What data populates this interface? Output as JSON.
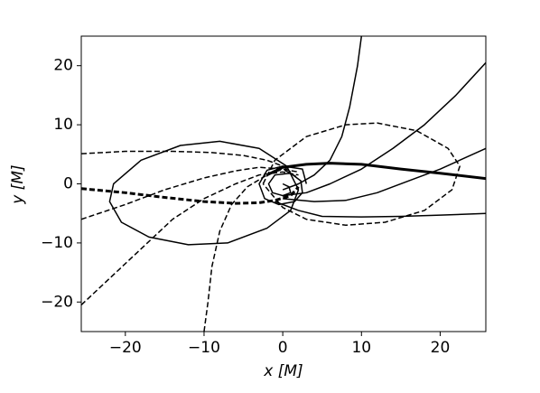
{
  "chart_data": {
    "type": "line",
    "xlabel": "x [M]",
    "ylabel": "y [M]",
    "xlim": [
      -25.6,
      25.8
    ],
    "ylim": [
      -25,
      25
    ],
    "xticks": [
      {
        "value": -20,
        "label": "−20"
      },
      {
        "value": -10,
        "label": "−10"
      },
      0,
      10,
      20
    ],
    "yticks": [
      {
        "value": -20,
        "label": "−20"
      },
      {
        "value": -10,
        "label": "−10"
      },
      0,
      10,
      20
    ],
    "grid": false,
    "series": [
      {
        "color": "#000000",
        "dash": false,
        "linewidth": 1.5,
        "x": [
          2,
          0.5,
          -3,
          -8,
          -13,
          -18,
          -21.5,
          -22,
          -20.5,
          -17,
          -12,
          -7,
          -2,
          1,
          2
        ],
        "values": [
          -1,
          3,
          6,
          7.2,
          6.5,
          4,
          0,
          -3,
          -6.5,
          -9,
          -10.3,
          -10,
          -7.5,
          -4.5,
          -1
        ]
      },
      {
        "color": "#000000",
        "dash": true,
        "linewidth": 1.5,
        "x": [
          -2.5,
          -1,
          3,
          8,
          12,
          17,
          21,
          22.5,
          21.5,
          18,
          13,
          8,
          3,
          0,
          -2.5
        ],
        "values": [
          0,
          4,
          8,
          10,
          10.3,
          9,
          6,
          3,
          -1,
          -4.5,
          -6.5,
          -7,
          -6,
          -4,
          0
        ]
      },
      {
        "color": "#000000",
        "dash": false,
        "linewidth": 1.5,
        "x": [
          0,
          2,
          4,
          6,
          7.5,
          8.5,
          9.5,
          10
        ],
        "values": [
          -1,
          0,
          1.5,
          4,
          8,
          13,
          20,
          25
        ]
      },
      {
        "color": "#000000",
        "dash": false,
        "linewidth": 1.5,
        "x": [
          0,
          3,
          6,
          10,
          14,
          18,
          22,
          25.8
        ],
        "values": [
          -2,
          -1.5,
          0,
          2.5,
          6,
          10,
          15,
          20.5
        ]
      },
      {
        "color": "#000000",
        "dash": false,
        "linewidth": 1.5,
        "x": [
          0,
          4,
          8,
          12,
          16,
          20,
          25.8
        ],
        "values": [
          -2.5,
          -3,
          -2.8,
          -1.5,
          0.5,
          2.5,
          6
        ]
      },
      {
        "color": "#000000",
        "dash": false,
        "linewidth": 3,
        "x": [
          -2,
          0,
          3,
          6,
          10,
          15,
          20,
          25.8
        ],
        "values": [
          1.5,
          2.8,
          3.3,
          3.5,
          3.3,
          2.5,
          1.8,
          0.9
        ]
      },
      {
        "color": "#000000",
        "dash": false,
        "linewidth": 1.5,
        "x": [
          -1,
          2,
          5,
          10,
          15,
          20,
          25.8
        ],
        "values": [
          -3,
          -4.5,
          -5.5,
          -5.6,
          -5.5,
          -5.3,
          -5
        ]
      },
      {
        "color": "#000000",
        "dash": true,
        "linewidth": 1.5,
        "x": [
          -25.6,
          -20,
          -14,
          -9,
          -5,
          -2,
          0,
          1
        ],
        "values": [
          5.1,
          5.5,
          5.5,
          5.3,
          4.8,
          4,
          3,
          2
        ]
      },
      {
        "color": "#000000",
        "dash": true,
        "linewidth": 1.5,
        "x": [
          -25.6,
          -20,
          -15,
          -10,
          -6,
          -3,
          0,
          2
        ],
        "values": [
          -6,
          -3.5,
          -1,
          1,
          2.2,
          2.8,
          2.5,
          1
        ]
      },
      {
        "color": "#000000",
        "dash": true,
        "linewidth": 1.5,
        "x": [
          -25.6,
          -22,
          -18,
          -14,
          -10,
          -6,
          -3,
          0,
          2
        ],
        "values": [
          -20.5,
          -16,
          -11,
          -6,
          -2.5,
          0,
          1.5,
          2,
          1.5
        ]
      },
      {
        "color": "#000000",
        "dash": true,
        "linewidth": 1.5,
        "x": [
          -10,
          -9.5,
          -9,
          -8,
          -6.5,
          -4.5,
          -2,
          0,
          2
        ],
        "values": [
          -25,
          -20,
          -14,
          -8,
          -3.5,
          -0.5,
          1.5,
          2.5,
          2
        ]
      },
      {
        "color": "#000000",
        "dash": true,
        "linewidth": 3,
        "x": [
          -25.6,
          -20,
          -15,
          -10,
          -6,
          -3,
          -1,
          1,
          2
        ],
        "values": [
          -0.8,
          -1.5,
          -2.3,
          -3,
          -3.3,
          -3.2,
          -2.8,
          -2,
          -0.5
        ]
      },
      {
        "color": "#000000",
        "dash": false,
        "linewidth": 1.5,
        "x": [
          0,
          0.8,
          1,
          0,
          -1.3,
          -1.8,
          -1,
          1,
          2.3,
          2.5,
          1.5,
          -0.5,
          -2.3,
          -3,
          -2,
          0,
          2.5,
          3
        ],
        "values": [
          0,
          -0.5,
          -1.5,
          -2,
          -1.5,
          0,
          1.5,
          1.8,
          0.5,
          -1.5,
          -3,
          -3.5,
          -2.5,
          0,
          2.3,
          3,
          2.5,
          0
        ]
      }
    ]
  }
}
